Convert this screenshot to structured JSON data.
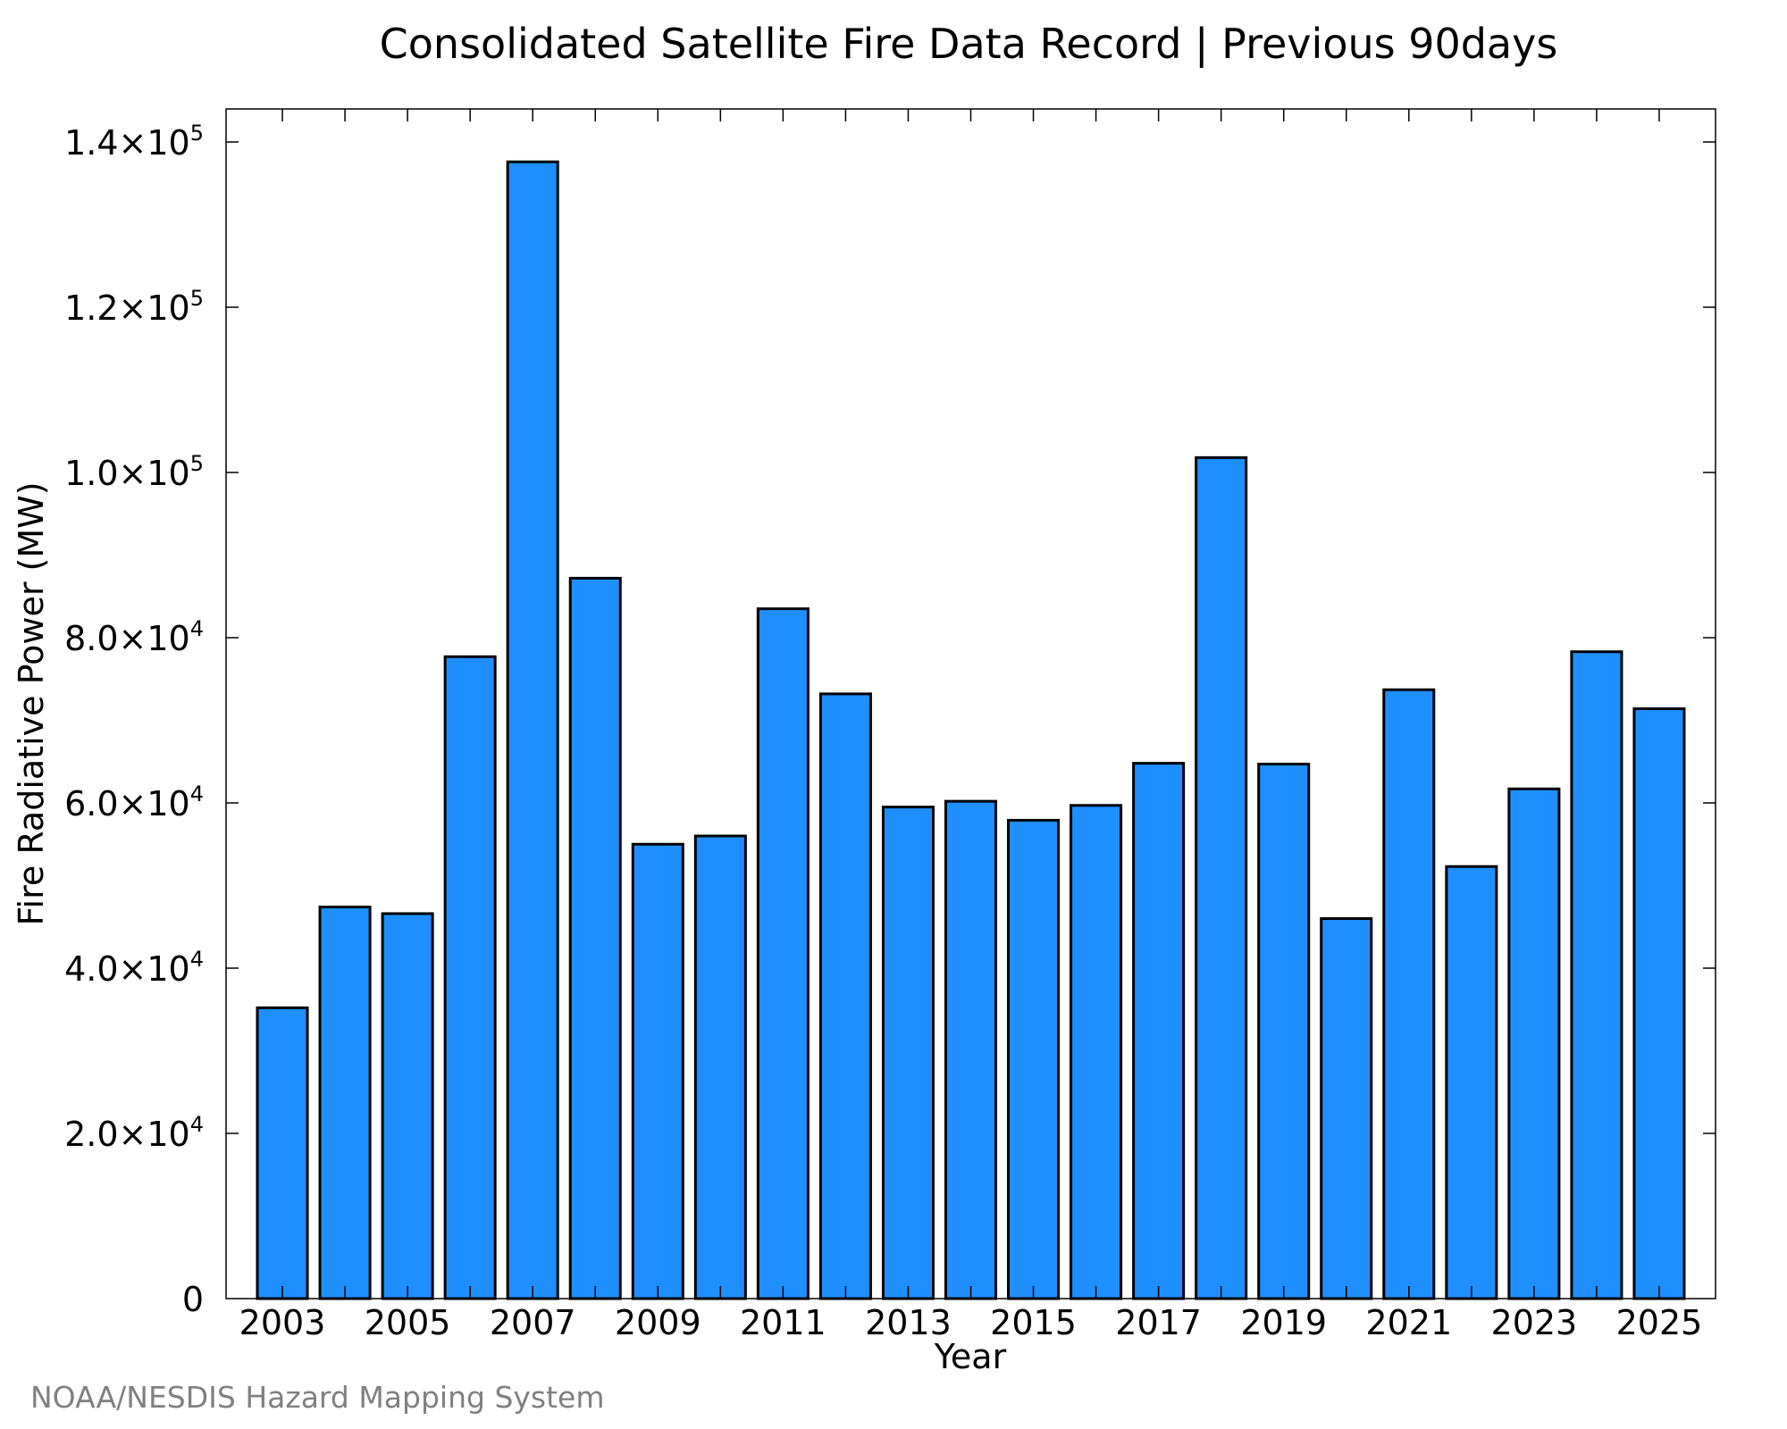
{
  "chart_data": {
    "type": "bar",
    "title": "Consolidated Satellite Fire Data Record | Previous 90days",
    "xlabel": "Year",
    "ylabel": "Fire Radiative Power (MW)",
    "credit": "NOAA/NESDIS Hazard Mapping System",
    "ylim": [
      0,
      144000
    ],
    "xlim": [
      2002.1,
      2025.9
    ],
    "grid": false,
    "legend": "none",
    "bar_color": "#1f8fff",
    "bar_edge_color": "#000000",
    "categories": [
      2003,
      2004,
      2005,
      2006,
      2007,
      2008,
      2009,
      2010,
      2011,
      2012,
      2013,
      2014,
      2015,
      2016,
      2017,
      2018,
      2019,
      2020,
      2021,
      2022,
      2023,
      2024,
      2025
    ],
    "values": [
      35200,
      47400,
      46600,
      77700,
      137600,
      87200,
      55000,
      56000,
      83500,
      73200,
      59500,
      60200,
      57900,
      59700,
      64800,
      101800,
      64700,
      46000,
      73700,
      52300,
      61700,
      78300,
      71400
    ],
    "x_tick_labels": [
      "2003",
      "2005",
      "2007",
      "2009",
      "2011",
      "2013",
      "2015",
      "2017",
      "2019",
      "2021",
      "2023",
      "2025"
    ],
    "y_ticks": [
      {
        "value": 0,
        "mantissa": "0",
        "exponent": ""
      },
      {
        "value": 20000,
        "mantissa": "2.0×10",
        "exponent": "4"
      },
      {
        "value": 40000,
        "mantissa": "4.0×10",
        "exponent": "4"
      },
      {
        "value": 60000,
        "mantissa": "6.0×10",
        "exponent": "4"
      },
      {
        "value": 80000,
        "mantissa": "8.0×10",
        "exponent": "4"
      },
      {
        "value": 100000,
        "mantissa": "1.0×10",
        "exponent": "5"
      },
      {
        "value": 120000,
        "mantissa": "1.2×10",
        "exponent": "5"
      },
      {
        "value": 140000,
        "mantissa": "1.4×10",
        "exponent": "5"
      }
    ]
  }
}
